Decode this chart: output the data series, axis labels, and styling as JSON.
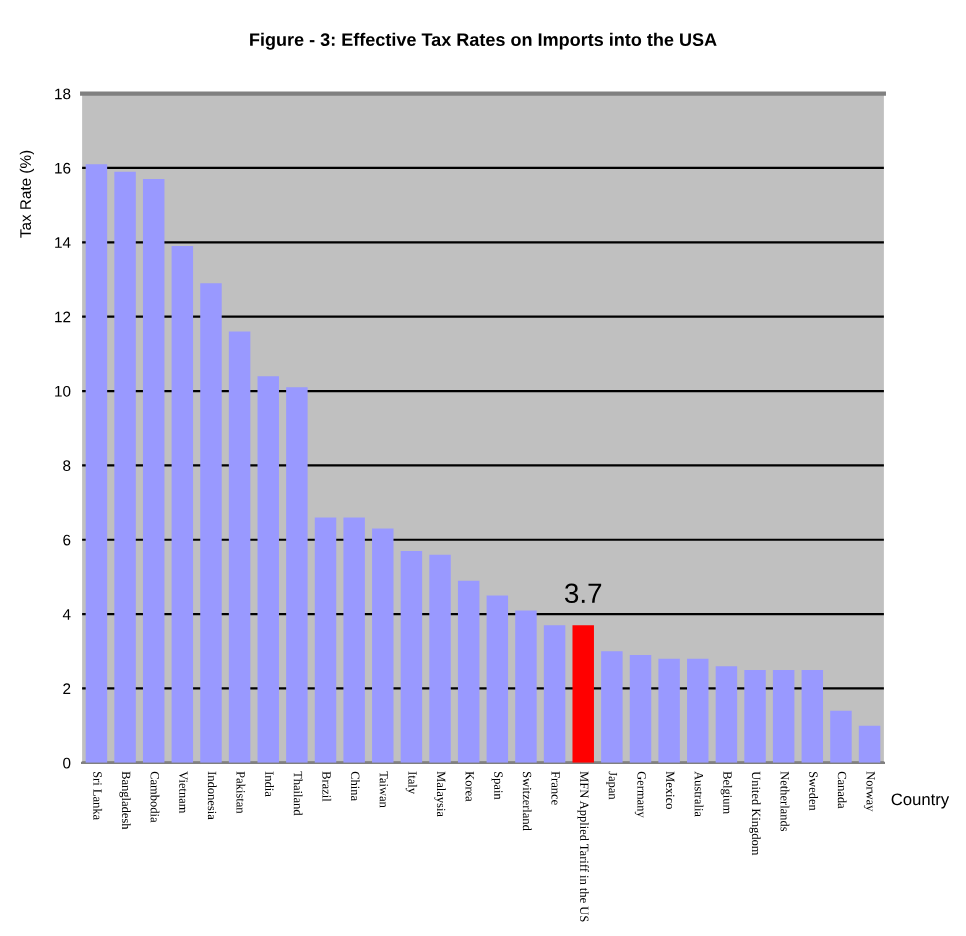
{
  "chart_data": {
    "type": "bar",
    "title": "Figure - 3: Effective Tax Rates on Imports into the USA",
    "xlabel": "Country",
    "ylabel": "Tax Rate (%)",
    "categories": [
      "Sri Lanka",
      "Bangladesh",
      "Cambodia",
      "Vietnam",
      "Indonesia",
      "Pakistan",
      "India",
      "Thailand",
      "Brazil",
      "China",
      "Taiwan",
      "Italy",
      "Malaysia",
      "Korea",
      "Spain",
      "Switzerland",
      "France",
      "MFN Applied Tariff in the US",
      "Japan",
      "Germany",
      "Mexico",
      "Australia",
      "Belgium",
      "United Kingdom",
      "Netherlands",
      "Sweden",
      "Canada",
      "Norway"
    ],
    "values": [
      16.1,
      15.9,
      15.7,
      13.9,
      12.9,
      11.6,
      10.4,
      10.1,
      6.6,
      6.6,
      6.3,
      5.7,
      5.6,
      4.9,
      4.5,
      4.1,
      3.7,
      3.7,
      3.0,
      2.9,
      2.8,
      2.8,
      2.6,
      2.5,
      2.5,
      2.5,
      1.4,
      1.0
    ],
    "colors": [
      "#9999ff",
      "#9999ff",
      "#9999ff",
      "#9999ff",
      "#9999ff",
      "#9999ff",
      "#9999ff",
      "#9999ff",
      "#9999ff",
      "#9999ff",
      "#9999ff",
      "#9999ff",
      "#9999ff",
      "#9999ff",
      "#9999ff",
      "#9999ff",
      "#9999ff",
      "#ff0000",
      "#9999ff",
      "#9999ff",
      "#9999ff",
      "#9999ff",
      "#9999ff",
      "#9999ff",
      "#9999ff",
      "#9999ff",
      "#9999ff",
      "#9999ff"
    ],
    "value_labels": [
      null,
      null,
      null,
      null,
      null,
      null,
      null,
      null,
      null,
      null,
      null,
      null,
      null,
      null,
      null,
      null,
      null,
      "3.7",
      null,
      null,
      null,
      null,
      null,
      null,
      null,
      null,
      null,
      null
    ],
    "ylim": [
      0,
      18
    ],
    "yticks": [
      0,
      2,
      4,
      6,
      8,
      10,
      12,
      14,
      16,
      18
    ],
    "grid": "y",
    "legend": false
  }
}
